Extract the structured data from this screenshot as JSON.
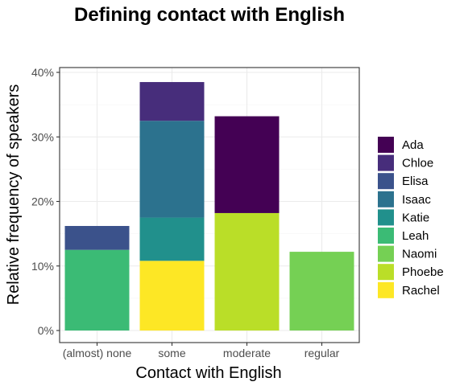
{
  "chart_data": {
    "type": "bar",
    "stacked": true,
    "title": "Defining contact with English",
    "xlabel": "Contact with English",
    "ylabel": "Relative frequency of speakers",
    "categories": [
      "(almost) none",
      "some",
      "moderate",
      "regular"
    ],
    "y_ticks": [
      "0%",
      "10%",
      "20%",
      "30%",
      "40%"
    ],
    "ylim": [
      0,
      40
    ],
    "grid": true,
    "legend_position": "right",
    "series": [
      {
        "name": "Ada",
        "color": "#440154",
        "values": [
          0,
          0,
          15,
          0
        ]
      },
      {
        "name": "Chloe",
        "color": "#472D7B",
        "values": [
          0,
          6,
          0,
          0
        ]
      },
      {
        "name": "Elisa",
        "color": "#3B528B",
        "values": [
          3.7,
          0,
          0,
          0
        ]
      },
      {
        "name": "Isaac",
        "color": "#2C728E",
        "values": [
          0,
          15,
          0,
          0
        ]
      },
      {
        "name": "Katie",
        "color": "#21908C",
        "values": [
          0,
          6.7,
          0,
          0
        ]
      },
      {
        "name": "Leah",
        "color": "#3BBB75",
        "values": [
          12.5,
          0,
          0,
          0
        ]
      },
      {
        "name": "Naomi",
        "color": "#75D054",
        "values": [
          0,
          0,
          0,
          12.2
        ]
      },
      {
        "name": "Phoebe",
        "color": "#BADE28",
        "values": [
          0,
          0,
          18.2,
          0
        ]
      },
      {
        "name": "Rachel",
        "color": "#FDE725",
        "values": [
          0,
          10.8,
          0,
          0
        ]
      }
    ]
  }
}
